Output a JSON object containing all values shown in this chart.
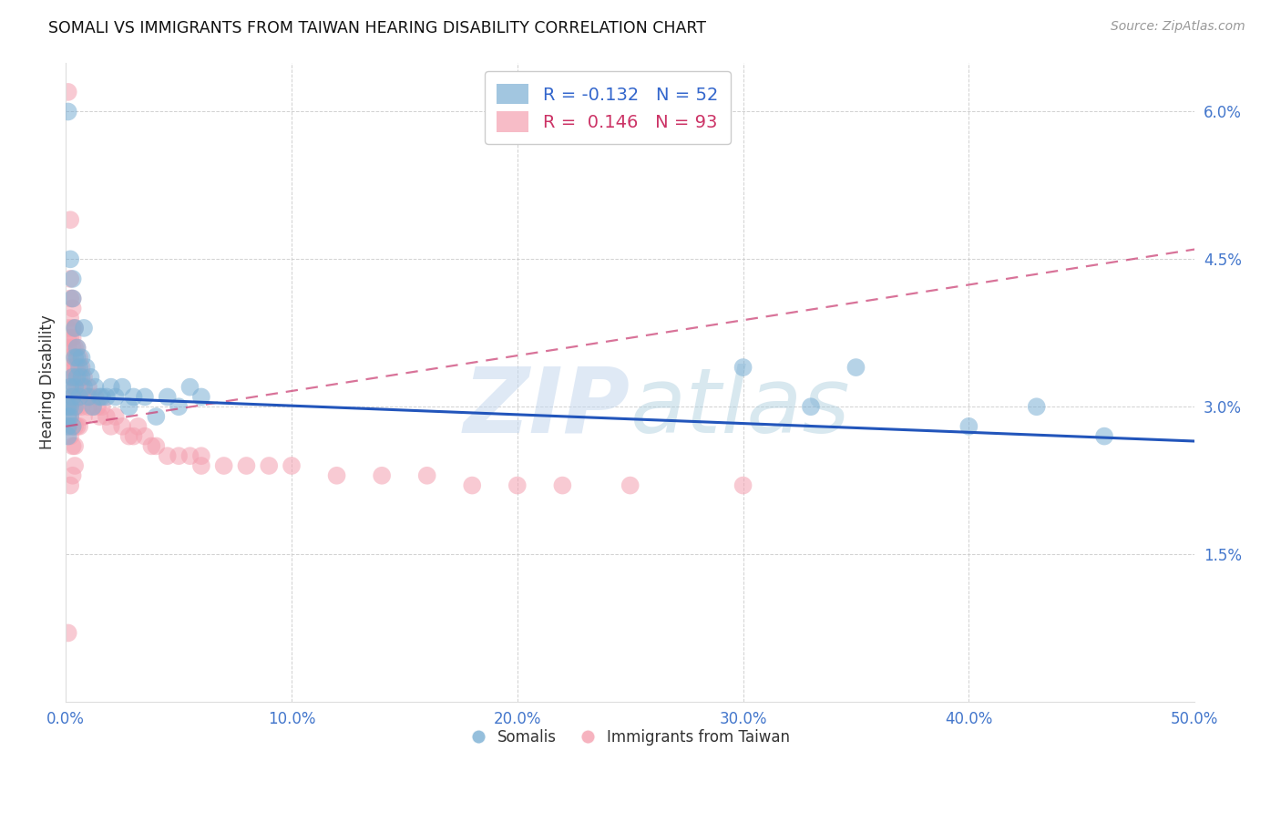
{
  "title": "SOMALI VS IMMIGRANTS FROM TAIWAN HEARING DISABILITY CORRELATION CHART",
  "source": "Source: ZipAtlas.com",
  "ylabel": "Hearing Disability",
  "xlim": [
    0.0,
    0.5
  ],
  "ylim": [
    0.0,
    0.065
  ],
  "xticks": [
    0.0,
    0.1,
    0.2,
    0.3,
    0.4,
    0.5
  ],
  "xticklabels": [
    "0.0%",
    "10.0%",
    "20.0%",
    "30.0%",
    "40.0%",
    "50.0%"
  ],
  "yticks": [
    0.0,
    0.015,
    0.03,
    0.045,
    0.06
  ],
  "yticklabels": [
    "",
    "1.5%",
    "3.0%",
    "4.5%",
    "6.0%"
  ],
  "legend_r_blue": "-0.132",
  "legend_n_blue": "52",
  "legend_r_pink": "0.146",
  "legend_n_pink": "93",
  "blue_color": "#7BAFD4",
  "pink_color": "#F4A0B0",
  "trendline_blue_color": "#2255BB",
  "trendline_pink_color": "#CC4477",
  "watermark_zip": "ZIP",
  "watermark_atlas": "atlas",
  "blue_trendline_x0": 0.0,
  "blue_trendline_y0": 0.031,
  "blue_trendline_x1": 0.5,
  "blue_trendline_y1": 0.0265,
  "pink_trendline_x0": 0.0,
  "pink_trendline_y0": 0.028,
  "pink_trendline_x1": 0.5,
  "pink_trendline_y1": 0.046,
  "somali_points_x": [
    0.001,
    0.001,
    0.001,
    0.001,
    0.001,
    0.002,
    0.002,
    0.002,
    0.002,
    0.003,
    0.003,
    0.003,
    0.003,
    0.003,
    0.004,
    0.004,
    0.004,
    0.004,
    0.005,
    0.005,
    0.005,
    0.006,
    0.006,
    0.007,
    0.007,
    0.008,
    0.008,
    0.009,
    0.01,
    0.011,
    0.012,
    0.013,
    0.015,
    0.016,
    0.018,
    0.02,
    0.022,
    0.025,
    0.028,
    0.03,
    0.035,
    0.04,
    0.045,
    0.05,
    0.055,
    0.06,
    0.3,
    0.33,
    0.35,
    0.4,
    0.43,
    0.46
  ],
  "somali_points_y": [
    0.06,
    0.03,
    0.029,
    0.028,
    0.027,
    0.045,
    0.032,
    0.03,
    0.029,
    0.043,
    0.041,
    0.033,
    0.031,
    0.028,
    0.038,
    0.035,
    0.032,
    0.03,
    0.036,
    0.035,
    0.033,
    0.034,
    0.031,
    0.035,
    0.033,
    0.038,
    0.032,
    0.034,
    0.031,
    0.033,
    0.03,
    0.032,
    0.031,
    0.031,
    0.031,
    0.032,
    0.031,
    0.032,
    0.03,
    0.031,
    0.031,
    0.029,
    0.031,
    0.03,
    0.032,
    0.031,
    0.034,
    0.03,
    0.034,
    0.028,
    0.03,
    0.027
  ],
  "taiwan_points_x": [
    0.001,
    0.001,
    0.001,
    0.001,
    0.001,
    0.001,
    0.001,
    0.001,
    0.001,
    0.001,
    0.002,
    0.002,
    0.002,
    0.002,
    0.002,
    0.002,
    0.002,
    0.002,
    0.002,
    0.002,
    0.003,
    0.003,
    0.003,
    0.003,
    0.003,
    0.003,
    0.003,
    0.003,
    0.003,
    0.003,
    0.004,
    0.004,
    0.004,
    0.004,
    0.004,
    0.004,
    0.004,
    0.004,
    0.005,
    0.005,
    0.005,
    0.005,
    0.005,
    0.006,
    0.006,
    0.006,
    0.006,
    0.007,
    0.007,
    0.007,
    0.008,
    0.008,
    0.008,
    0.009,
    0.01,
    0.01,
    0.011,
    0.012,
    0.013,
    0.014,
    0.015,
    0.016,
    0.018,
    0.02,
    0.022,
    0.025,
    0.028,
    0.03,
    0.032,
    0.035,
    0.038,
    0.04,
    0.045,
    0.05,
    0.055,
    0.06,
    0.07,
    0.08,
    0.09,
    0.1,
    0.12,
    0.14,
    0.16,
    0.18,
    0.2,
    0.22,
    0.25,
    0.3,
    0.06,
    0.004,
    0.003,
    0.002,
    0.001
  ],
  "taiwan_points_y": [
    0.062,
    0.038,
    0.037,
    0.036,
    0.035,
    0.034,
    0.033,
    0.031,
    0.03,
    0.028,
    0.049,
    0.043,
    0.041,
    0.039,
    0.037,
    0.035,
    0.033,
    0.031,
    0.029,
    0.027,
    0.041,
    0.04,
    0.038,
    0.037,
    0.036,
    0.034,
    0.032,
    0.03,
    0.028,
    0.026,
    0.038,
    0.036,
    0.034,
    0.033,
    0.031,
    0.03,
    0.028,
    0.026,
    0.036,
    0.034,
    0.032,
    0.03,
    0.028,
    0.035,
    0.033,
    0.031,
    0.028,
    0.034,
    0.032,
    0.03,
    0.033,
    0.031,
    0.029,
    0.031,
    0.032,
    0.03,
    0.031,
    0.03,
    0.031,
    0.03,
    0.029,
    0.03,
    0.029,
    0.028,
    0.029,
    0.028,
    0.027,
    0.027,
    0.028,
    0.027,
    0.026,
    0.026,
    0.025,
    0.025,
    0.025,
    0.024,
    0.024,
    0.024,
    0.024,
    0.024,
    0.023,
    0.023,
    0.023,
    0.022,
    0.022,
    0.022,
    0.022,
    0.022,
    0.025,
    0.024,
    0.023,
    0.022,
    0.007
  ]
}
